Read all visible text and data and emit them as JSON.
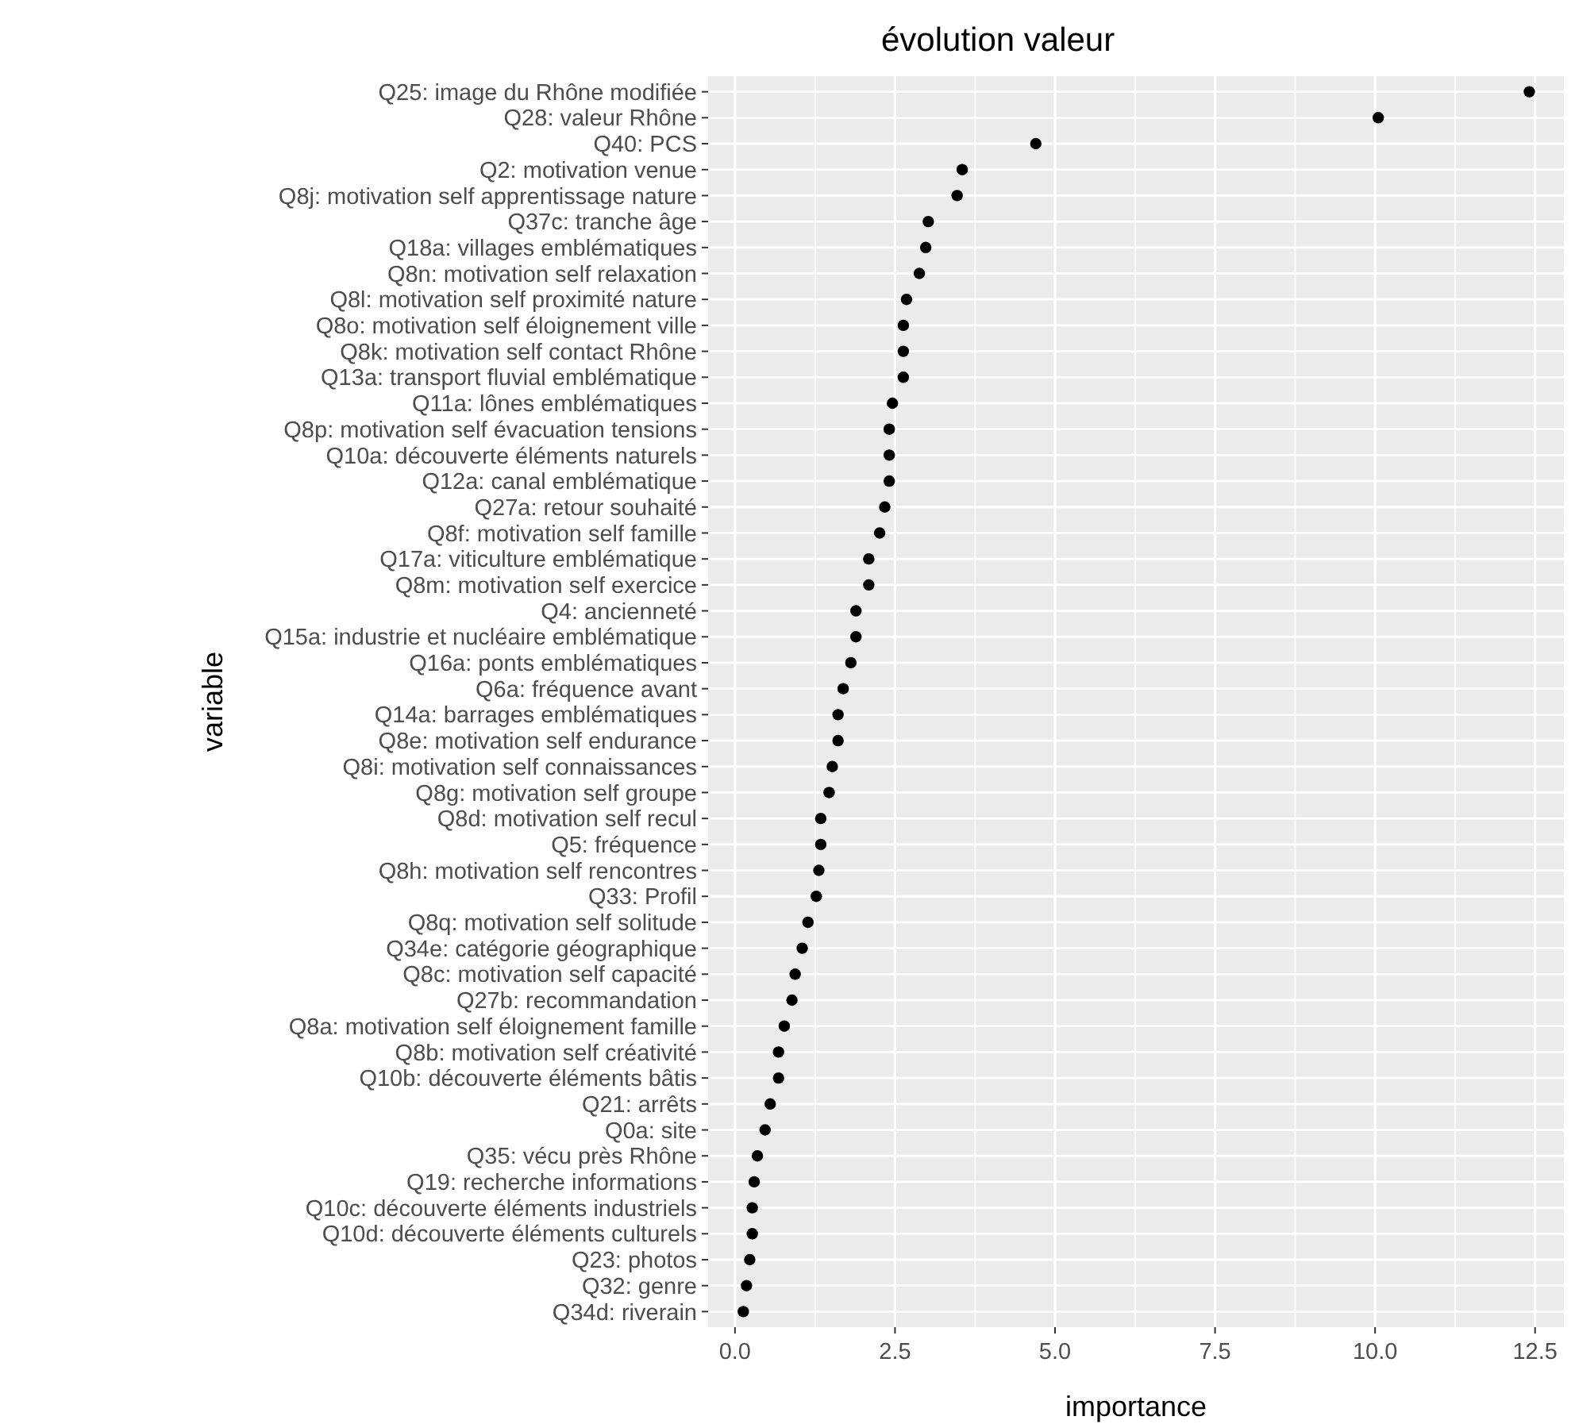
{
  "chart_data": {
    "type": "scatter",
    "orientation": "horizontal",
    "title": "évolution valeur",
    "xlabel": "importance",
    "ylabel": "variable",
    "categories": [
      "Q25: image du Rhône modifiée",
      "Q28: valeur Rhône",
      "Q40: PCS",
      "Q2: motivation venue",
      "Q8j: motivation self apprentissage nature",
      "Q37c: tranche âge",
      "Q18a: villages emblématiques",
      "Q8n: motivation self relaxation",
      "Q8l: motivation self proximité nature",
      "Q8o: motivation self éloignement ville",
      "Q8k: motivation self contact Rhône",
      "Q13a: transport fluvial emblématique",
      "Q11a: lônes emblématiques",
      "Q8p: motivation self évacuation tensions",
      "Q10a: découverte éléments naturels",
      "Q12a: canal emblématique",
      "Q27a: retour souhaité",
      "Q8f: motivation self famille",
      "Q17a: viticulture emblématique",
      "Q8m: motivation self exercice",
      "Q4: ancienneté",
      "Q15a: industrie et nucléaire emblématique",
      "Q16a: ponts emblématiques",
      "Q6a: fréquence avant",
      "Q14a: barrages emblématiques",
      "Q8e: motivation self endurance",
      "Q8i: motivation self connaissances",
      "Q8g: motivation self groupe",
      "Q8d: motivation self recul",
      "Q5: fréquence",
      "Q8h: motivation self rencontres",
      "Q33: Profil",
      "Q8q: motivation self solitude",
      "Q34e: catégorie géographique",
      "Q8c: motivation self capacité",
      "Q27b: recommandation",
      "Q8a: motivation self éloignement famille",
      "Q8b: motivation self créativité",
      "Q10b: découverte éléments bâtis",
      "Q21: arrêts",
      "Q0a: site",
      "Q35: vécu près Rhône",
      "Q19: recherche informations",
      "Q10c: découverte éléments industriels",
      "Q10d: découverte éléments culturels",
      "Q23: photos",
      "Q32: genre",
      "Q34d: riverain"
    ],
    "values": [
      12.41,
      10.05,
      4.7,
      3.55,
      3.47,
      3.02,
      2.98,
      2.88,
      2.68,
      2.63,
      2.63,
      2.63,
      2.46,
      2.41,
      2.41,
      2.41,
      2.34,
      2.26,
      2.09,
      2.09,
      1.89,
      1.89,
      1.81,
      1.69,
      1.61,
      1.61,
      1.52,
      1.47,
      1.34,
      1.34,
      1.31,
      1.27,
      1.14,
      1.05,
      0.94,
      0.89,
      0.77,
      0.68,
      0.68,
      0.55,
      0.47,
      0.35,
      0.3,
      0.27,
      0.27,
      0.23,
      0.18,
      0.13
    ],
    "color": "#000000",
    "marker": "circle",
    "grid": true,
    "xlim": [
      -0.42,
      12.95
    ],
    "xticks": [
      {
        "value": 0,
        "label": "0.0"
      },
      {
        "value": 1.25,
        "label": null
      },
      {
        "value": 2.5,
        "label": "2.5"
      },
      {
        "value": 3.75,
        "label": null
      },
      {
        "value": 5,
        "label": "5.0"
      },
      {
        "value": 6.25,
        "label": null
      },
      {
        "value": 7.5,
        "label": "7.5"
      },
      {
        "value": 8.75,
        "label": null
      },
      {
        "value": 10,
        "label": "10.0"
      },
      {
        "value": 11.25,
        "label": null
      },
      {
        "value": 12.5,
        "label": "12.5"
      }
    ]
  }
}
